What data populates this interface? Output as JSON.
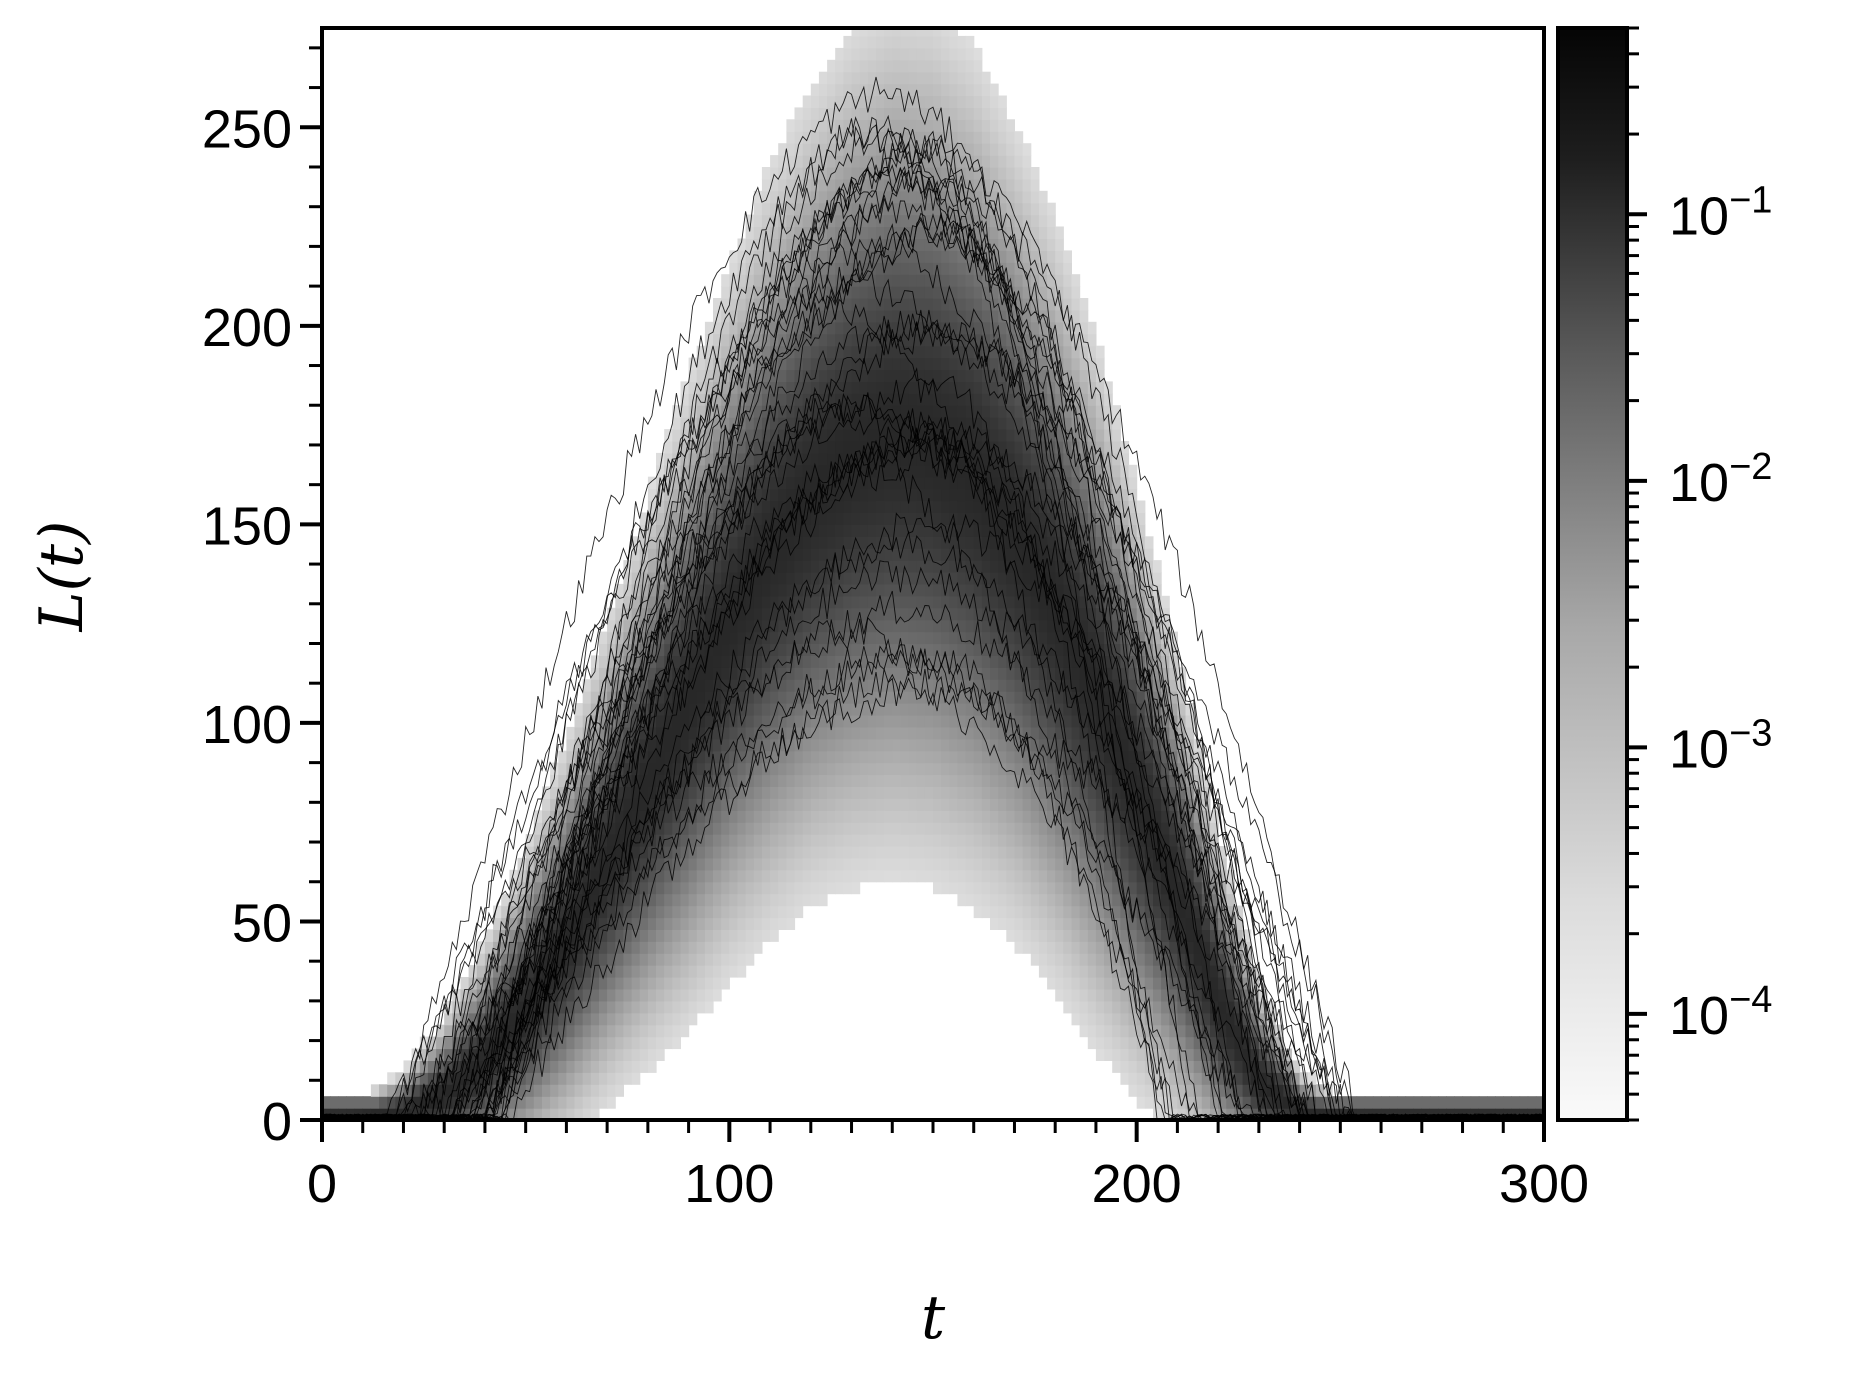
{
  "chart_data": {
    "type": "heatmap",
    "title": "",
    "xlabel": "t",
    "ylabel": "L(t)",
    "xlim": [
      0,
      300
    ],
    "ylim": [
      0,
      275
    ],
    "x_ticks": [
      {
        "value": 0,
        "label": "0"
      },
      {
        "value": 100,
        "label": "100"
      },
      {
        "value": 200,
        "label": "200"
      },
      {
        "value": 300,
        "label": "300"
      }
    ],
    "y_ticks": [
      {
        "value": 0,
        "label": "0"
      },
      {
        "value": 50,
        "label": "50"
      },
      {
        "value": 100,
        "label": "100"
      },
      {
        "value": 150,
        "label": "150"
      },
      {
        "value": 200,
        "label": "200"
      },
      {
        "value": 250,
        "label": "250"
      }
    ],
    "x_minor_step": 10,
    "y_minor_step": 10,
    "colorbar": {
      "scale": "log",
      "colormap": "gray_r",
      "range": [
        4e-05,
        0.5
      ],
      "ticks": [
        {
          "value": 0.0001,
          "label": "10",
          "exponent": "−4"
        },
        {
          "value": 0.001,
          "label": "10",
          "exponent": "−3"
        },
        {
          "value": 0.01,
          "label": "10",
          "exponent": "−2"
        },
        {
          "value": 0.1,
          "label": "10",
          "exponent": "−1"
        }
      ]
    },
    "density_ridge": {
      "t": [
        0,
        10,
        20,
        30,
        40,
        50,
        60,
        70,
        80,
        90,
        100,
        110,
        120,
        130,
        140,
        150,
        160,
        170,
        180,
        190,
        200,
        210,
        220,
        230,
        240,
        250,
        260,
        300
      ],
      "mean_L": [
        1,
        1,
        2,
        6,
        15,
        28,
        45,
        65,
        85,
        105,
        125,
        143,
        157,
        167,
        172,
        170,
        162,
        148,
        130,
        108,
        83,
        57,
        30,
        10,
        2,
        1,
        1,
        1
      ],
      "spread_L": [
        1,
        2,
        4,
        8,
        12,
        16,
        20,
        24,
        28,
        32,
        35,
        38,
        40,
        42,
        43,
        43,
        42,
        40,
        38,
        35,
        30,
        24,
        17,
        10,
        4,
        2,
        1,
        1
      ]
    },
    "trajectories": {
      "count": 40,
      "peak_range": [
        105,
        260
      ],
      "peak_time_range": [
        125,
        150
      ],
      "end_time_range": [
        205,
        255
      ],
      "start_time_range": [
        15,
        45
      ]
    }
  }
}
